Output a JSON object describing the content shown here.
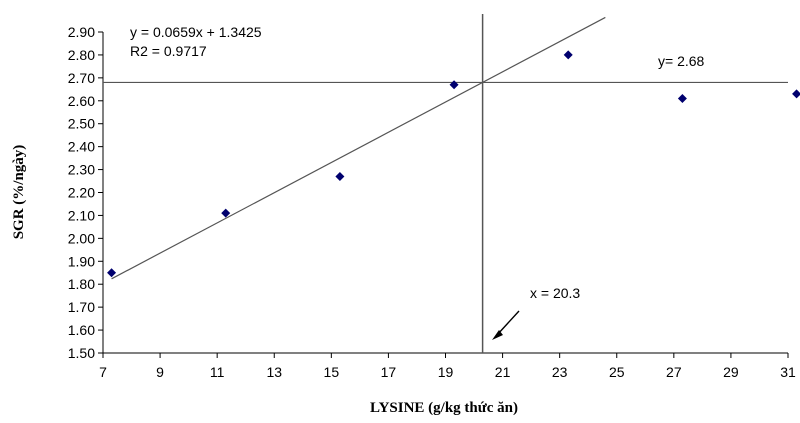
{
  "chart_data": {
    "type": "scatter",
    "xlabel": "LYSINE (g/kg thức ăn)",
    "ylabel": "SGR (%/ngày)",
    "xlim": [
      7,
      31
    ],
    "ylim": [
      1.5,
      2.9
    ],
    "x_ticks": [
      "7",
      "9",
      "11",
      "13",
      "15",
      "17",
      "19",
      "21",
      "23",
      "25",
      "27",
      "29",
      "31"
    ],
    "y_ticks": [
      "1.50",
      "1.60",
      "1.70",
      "1.80",
      "1.90",
      "2.00",
      "2.10",
      "2.20",
      "2.30",
      "2.40",
      "2.50",
      "2.60",
      "2.70",
      "2.80",
      "2.90"
    ],
    "series": [
      {
        "points": [
          {
            "x": 7.3,
            "y": 1.85
          },
          {
            "x": 11.3,
            "y": 2.11
          },
          {
            "x": 15.3,
            "y": 2.27
          },
          {
            "x": 19.3,
            "y": 2.67
          },
          {
            "x": 23.3,
            "y": 2.8
          },
          {
            "x": 27.3,
            "y": 2.61
          },
          {
            "x": 31.3,
            "y": 2.63
          }
        ],
        "color": "#00006e",
        "marker": "diamond"
      }
    ],
    "trendline": {
      "slope": 0.0659,
      "intercept": 1.3425,
      "x_range": [
        7.3,
        24.6
      ],
      "color": "#555555"
    },
    "hline": {
      "y": 2.68,
      "color": "#555555"
    },
    "vline": {
      "x": 20.3,
      "color": "#555555"
    },
    "annotations": {
      "equation": "y = 0.0659x + 1.3425",
      "r2": "R2 = 0.9717",
      "hline_label": "y= 2.68",
      "vline_label": "x = 20.3"
    },
    "grid": false,
    "legend": "none"
  }
}
